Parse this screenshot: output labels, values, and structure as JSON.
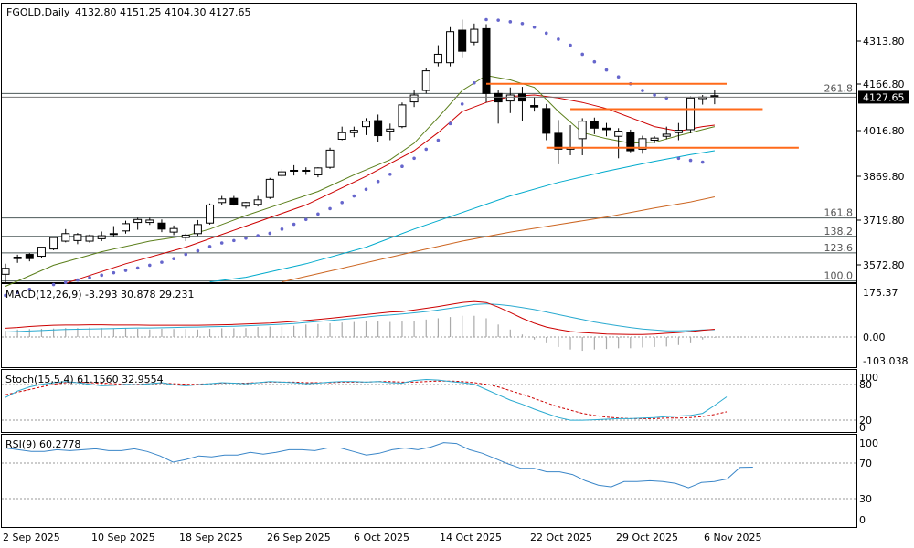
{
  "header": {
    "symbol_line": "FGOLD,Daily",
    "ohlc": "4132.80 4151.25 4104.30 4127.65"
  },
  "colors": {
    "candle_up": "#ffffff",
    "candle_down": "#000000",
    "ma_green": "#5b7f1b",
    "ma_red": "#cc0000",
    "ma_cyan": "#00aacc",
    "ma_brown": "#cc6622",
    "sar_dots": "#6666cc",
    "fib_line": "#4d5a5a",
    "sr_line": "#ff6a1a",
    "macd_signal": "#cc0000",
    "macd_main": "#2aaad0",
    "stoch_main": "#2aaad0",
    "stoch_signal": "#cc0000",
    "rsi": "#3a86c8",
    "price_tag_bg": "#000000",
    "price_tag_fg": "#ffffff"
  },
  "main_pane": {
    "price_axis": [
      "4313.80",
      "4166.80",
      "4016.80",
      "3869.80",
      "3719.80",
      "3572.80"
    ],
    "current_price_tag": "4127.65",
    "fib_levels": [
      {
        "label": "261.8",
        "price": 4140
      },
      {
        "label": "161.8",
        "price": 3727
      },
      {
        "label": "138.2",
        "price": 3666
      },
      {
        "label": "123.6",
        "price": 3611
      },
      {
        "label": "100.0",
        "price": 3518
      }
    ]
  },
  "macd_pane": {
    "label": "MACD(12,26,9) -3.293 30.878 29.231",
    "axis": [
      "175.37",
      "0.00",
      "-103.038"
    ]
  },
  "stoch_pane": {
    "label": "Stoch(15,5,4) 61.1560 32.9554",
    "axis": [
      "100",
      "80",
      "20",
      "0"
    ]
  },
  "rsi_pane": {
    "label": "RSI(9) 60.2778",
    "axis": [
      "100",
      "70",
      "30",
      "0"
    ]
  },
  "time_axis": [
    "2 Sep 2025",
    "10 Sep 2025",
    "18 Sep 2025",
    "26 Sep 2025",
    "6 Oct 2025",
    "14 Oct 2025",
    "22 Oct 2025",
    "29 Oct 2025",
    "6 Nov 2025"
  ],
  "chart_data": {
    "type": "candlestick",
    "symbol": "FGOLD",
    "timeframe": "Daily",
    "candles": [
      {
        "o": 3540,
        "h": 3575,
        "l": 3510,
        "c": 3560
      },
      {
        "o": 3592,
        "h": 3605,
        "l": 3578,
        "c": 3597
      },
      {
        "o": 3606,
        "h": 3610,
        "l": 3583,
        "c": 3592
      },
      {
        "o": 3600,
        "h": 3628,
        "l": 3595,
        "c": 3630
      },
      {
        "o": 3624,
        "h": 3665,
        "l": 3620,
        "c": 3662
      },
      {
        "o": 3650,
        "h": 3690,
        "l": 3646,
        "c": 3675
      },
      {
        "o": 3652,
        "h": 3677,
        "l": 3640,
        "c": 3672
      },
      {
        "o": 3650,
        "h": 3672,
        "l": 3645,
        "c": 3668
      },
      {
        "o": 3658,
        "h": 3682,
        "l": 3650,
        "c": 3668
      },
      {
        "o": 3672,
        "h": 3700,
        "l": 3666,
        "c": 3675
      },
      {
        "o": 3684,
        "h": 3718,
        "l": 3675,
        "c": 3708
      },
      {
        "o": 3712,
        "h": 3728,
        "l": 3688,
        "c": 3722
      },
      {
        "o": 3712,
        "h": 3728,
        "l": 3704,
        "c": 3720
      },
      {
        "o": 3710,
        "h": 3722,
        "l": 3680,
        "c": 3690
      },
      {
        "o": 3680,
        "h": 3702,
        "l": 3670,
        "c": 3692
      },
      {
        "o": 3662,
        "h": 3675,
        "l": 3650,
        "c": 3670
      },
      {
        "o": 3675,
        "h": 3720,
        "l": 3668,
        "c": 3705
      },
      {
        "o": 3710,
        "h": 3775,
        "l": 3705,
        "c": 3770
      },
      {
        "o": 3778,
        "h": 3800,
        "l": 3770,
        "c": 3790
      },
      {
        "o": 3792,
        "h": 3800,
        "l": 3768,
        "c": 3770
      },
      {
        "o": 3766,
        "h": 3780,
        "l": 3758,
        "c": 3778
      },
      {
        "o": 3772,
        "h": 3800,
        "l": 3765,
        "c": 3787
      },
      {
        "o": 3795,
        "h": 3860,
        "l": 3790,
        "c": 3855
      },
      {
        "o": 3868,
        "h": 3890,
        "l": 3862,
        "c": 3880
      },
      {
        "o": 3885,
        "h": 3902,
        "l": 3868,
        "c": 3882
      },
      {
        "o": 3882,
        "h": 3895,
        "l": 3870,
        "c": 3885
      },
      {
        "o": 3870,
        "h": 3895,
        "l": 3862,
        "c": 3893
      },
      {
        "o": 3895,
        "h": 3960,
        "l": 3890,
        "c": 3952
      },
      {
        "o": 3988,
        "h": 4030,
        "l": 3985,
        "c": 4010
      },
      {
        "o": 4010,
        "h": 4030,
        "l": 3995,
        "c": 4018
      },
      {
        "o": 4030,
        "h": 4058,
        "l": 4002,
        "c": 4048
      },
      {
        "o": 4050,
        "h": 4070,
        "l": 3978,
        "c": 4000
      },
      {
        "o": 4015,
        "h": 4040,
        "l": 3985,
        "c": 4022
      },
      {
        "o": 4030,
        "h": 4110,
        "l": 4025,
        "c": 4102
      },
      {
        "o": 4112,
        "h": 4150,
        "l": 4095,
        "c": 4135
      },
      {
        "o": 4150,
        "h": 4225,
        "l": 4140,
        "c": 4215
      },
      {
        "o": 4242,
        "h": 4300,
        "l": 4230,
        "c": 4270
      },
      {
        "o": 4242,
        "h": 4360,
        "l": 4230,
        "c": 4345
      },
      {
        "o": 4350,
        "h": 4385,
        "l": 4260,
        "c": 4280
      },
      {
        "o": 4310,
        "h": 4372,
        "l": 4300,
        "c": 4353
      },
      {
        "o": 4355,
        "h": 4370,
        "l": 4110,
        "c": 4140
      },
      {
        "o": 4140,
        "h": 4150,
        "l": 4040,
        "c": 4112
      },
      {
        "o": 4115,
        "h": 4160,
        "l": 4075,
        "c": 4135
      },
      {
        "o": 4138,
        "h": 4162,
        "l": 4050,
        "c": 4115
      },
      {
        "o": 4100,
        "h": 4128,
        "l": 4080,
        "c": 4095
      },
      {
        "o": 4090,
        "h": 4105,
        "l": 3985,
        "c": 4008
      },
      {
        "o": 4008,
        "h": 4052,
        "l": 3905,
        "c": 3955
      },
      {
        "o": 3955,
        "h": 4035,
        "l": 3935,
        "c": 3960
      },
      {
        "o": 3990,
        "h": 4058,
        "l": 3935,
        "c": 4048
      },
      {
        "o": 4048,
        "h": 4060,
        "l": 4005,
        "c": 4025
      },
      {
        "o": 4025,
        "h": 4042,
        "l": 3998,
        "c": 4020
      },
      {
        "o": 3998,
        "h": 4025,
        "l": 3925,
        "c": 4015
      },
      {
        "o": 4010,
        "h": 4020,
        "l": 3945,
        "c": 3950
      },
      {
        "o": 3955,
        "h": 4000,
        "l": 3940,
        "c": 3990
      },
      {
        "o": 3985,
        "h": 3998,
        "l": 3975,
        "c": 3992
      },
      {
        "o": 3998,
        "h": 4030,
        "l": 3988,
        "c": 4005
      },
      {
        "o": 4010,
        "h": 4042,
        "l": 3985,
        "c": 4018
      },
      {
        "o": 4020,
        "h": 4130,
        "l": 4008,
        "c": 4125
      },
      {
        "o": 4123,
        "h": 4135,
        "l": 4103,
        "c": 4128
      },
      {
        "o": 4132.8,
        "h": 4151.25,
        "l": 4104.3,
        "c": 4127.65
      }
    ],
    "sar": [
      {
        "i": 0,
        "v": 3470
      },
      {
        "i": 1,
        "v": 3480
      },
      {
        "i": 2,
        "v": 3490
      },
      {
        "i": 4,
        "v": 3506
      },
      {
        "i": 5,
        "v": 3513
      },
      {
        "i": 6,
        "v": 3521
      },
      {
        "i": 7,
        "v": 3529
      },
      {
        "i": 8,
        "v": 3537
      },
      {
        "i": 9,
        "v": 3545
      },
      {
        "i": 10,
        "v": 3553
      },
      {
        "i": 11,
        "v": 3561
      },
      {
        "i": 12,
        "v": 3570
      },
      {
        "i": 13,
        "v": 3580
      },
      {
        "i": 14,
        "v": 3592
      },
      {
        "i": 15,
        "v": 3606
      },
      {
        "i": 16,
        "v": 3618
      },
      {
        "i": 17,
        "v": 3632
      },
      {
        "i": 18,
        "v": 3644
      },
      {
        "i": 19,
        "v": 3652
      },
      {
        "i": 20,
        "v": 3660
      },
      {
        "i": 21,
        "v": 3668
      },
      {
        "i": 22,
        "v": 3676
      },
      {
        "i": 23,
        "v": 3690
      },
      {
        "i": 24,
        "v": 3706
      },
      {
        "i": 25,
        "v": 3722
      },
      {
        "i": 26,
        "v": 3740
      },
      {
        "i": 27,
        "v": 3758
      },
      {
        "i": 28,
        "v": 3778
      },
      {
        "i": 29,
        "v": 3800
      },
      {
        "i": 30,
        "v": 3822
      },
      {
        "i": 31,
        "v": 3848
      },
      {
        "i": 32,
        "v": 3872
      },
      {
        "i": 33,
        "v": 3898
      },
      {
        "i": 34,
        "v": 3925
      },
      {
        "i": 35,
        "v": 3955
      },
      {
        "i": 36,
        "v": 3985
      },
      {
        "i": 37,
        "v": 4040
      },
      {
        "i": 38,
        "v": 4105
      },
      {
        "i": 39,
        "v": 4175
      },
      {
        "i": 40,
        "v": 4385
      },
      {
        "i": 41,
        "v": 4383
      },
      {
        "i": 42,
        "v": 4378
      },
      {
        "i": 43,
        "v": 4372
      },
      {
        "i": 44,
        "v": 4360
      },
      {
        "i": 45,
        "v": 4340
      },
      {
        "i": 46,
        "v": 4320
      },
      {
        "i": 47,
        "v": 4300
      },
      {
        "i": 48,
        "v": 4270
      },
      {
        "i": 49,
        "v": 4245
      },
      {
        "i": 50,
        "v": 4218
      },
      {
        "i": 51,
        "v": 4195
      },
      {
        "i": 52,
        "v": 4172
      },
      {
        "i": 53,
        "v": 4150
      },
      {
        "i": 54,
        "v": 4135
      },
      {
        "i": 55,
        "v": 4125
      },
      {
        "i": 56,
        "v": 3925
      },
      {
        "i": 57,
        "v": 3918
      },
      {
        "i": 58,
        "v": 3912
      }
    ],
    "ma_green": [
      [
        0,
        3500
      ],
      [
        4,
        3570
      ],
      [
        8,
        3615
      ],
      [
        12,
        3650
      ],
      [
        15,
        3668
      ],
      [
        17,
        3690
      ],
      [
        20,
        3735
      ],
      [
        23,
        3775
      ],
      [
        26,
        3815
      ],
      [
        29,
        3870
      ],
      [
        32,
        3920
      ],
      [
        34,
        3975
      ],
      [
        36,
        4060
      ],
      [
        38,
        4150
      ],
      [
        40,
        4200
      ],
      [
        42,
        4185
      ],
      [
        44,
        4160
      ],
      [
        46,
        4080
      ],
      [
        48,
        4010
      ],
      [
        50,
        3990
      ],
      [
        52,
        3975
      ],
      [
        54,
        3978
      ],
      [
        56,
        4000
      ],
      [
        58,
        4020
      ],
      [
        59,
        4030
      ]
    ],
    "ma_red": [
      [
        5,
        3510
      ],
      [
        10,
        3575
      ],
      [
        15,
        3630
      ],
      [
        20,
        3700
      ],
      [
        25,
        3770
      ],
      [
        30,
        3865
      ],
      [
        34,
        3950
      ],
      [
        36,
        4010
      ],
      [
        38,
        4080
      ],
      [
        40,
        4110
      ],
      [
        42,
        4130
      ],
      [
        44,
        4135
      ],
      [
        46,
        4125
      ],
      [
        48,
        4110
      ],
      [
        50,
        4090
      ],
      [
        52,
        4060
      ],
      [
        54,
        4030
      ],
      [
        56,
        4015
      ],
      [
        58,
        4030
      ],
      [
        59,
        4035
      ]
    ],
    "ma_cyan": [
      [
        17,
        3515
      ],
      [
        20,
        3530
      ],
      [
        25,
        3575
      ],
      [
        30,
        3630
      ],
      [
        34,
        3690
      ],
      [
        38,
        3745
      ],
      [
        42,
        3800
      ],
      [
        46,
        3845
      ],
      [
        50,
        3882
      ],
      [
        54,
        3915
      ],
      [
        57,
        3937
      ],
      [
        59,
        3950
      ]
    ],
    "ma_brown": [
      [
        23,
        3515
      ],
      [
        28,
        3560
      ],
      [
        34,
        3615
      ],
      [
        38,
        3650
      ],
      [
        42,
        3680
      ],
      [
        46,
        3705
      ],
      [
        50,
        3730
      ],
      [
        54,
        3760
      ],
      [
        57,
        3780
      ],
      [
        59,
        3797
      ]
    ],
    "support_resistance": [
      {
        "price": 4172,
        "from": 40,
        "to": 60
      },
      {
        "price": 4088,
        "from": 47,
        "to": 63
      },
      {
        "price": 3960,
        "from": 45,
        "to": 66
      }
    ],
    "macd": {
      "histogram": [
        25,
        30,
        32,
        33,
        34,
        36,
        36,
        38,
        36,
        35,
        36,
        33,
        30,
        33,
        32,
        32,
        30,
        33,
        35,
        35,
        36,
        40,
        42,
        42,
        45,
        50,
        52,
        55,
        58,
        60,
        63,
        62,
        60,
        62,
        65,
        70,
        75,
        80,
        85,
        85,
        75,
        50,
        30,
        10,
        -10,
        -25,
        -40,
        -50,
        -55,
        -50,
        -48,
        -45,
        -45,
        -42,
        -40,
        -38,
        -32,
        -25,
        -10,
        -3.293
      ],
      "signal": [
        35,
        38,
        42,
        45,
        47,
        48,
        48,
        49,
        49,
        48,
        48,
        48,
        47,
        47,
        47,
        47,
        47,
        48,
        49,
        50,
        52,
        54,
        56,
        59,
        62,
        66,
        70,
        75,
        80,
        85,
        90,
        95,
        100,
        102,
        108,
        115,
        122,
        130,
        138,
        142,
        138,
        120,
        98,
        75,
        55,
        40,
        30,
        22,
        18,
        15,
        12,
        11,
        10,
        10,
        12,
        15,
        18,
        22,
        27,
        30.878
      ],
      "main": [
        20,
        22,
        24,
        26,
        28,
        30,
        31,
        32,
        33,
        34,
        35,
        36,
        36,
        37,
        38,
        39,
        40,
        41,
        42,
        43,
        45,
        47,
        49,
        51,
        54,
        58,
        62,
        66,
        70,
        75,
        80,
        85,
        88,
        92,
        97,
        102,
        108,
        115,
        122,
        130,
        133,
        130,
        125,
        118,
        110,
        100,
        90,
        80,
        70,
        60,
        52,
        45,
        38,
        32,
        28,
        25,
        25,
        26,
        28,
        29.231
      ]
    },
    "stoch": {
      "main": [
        60,
        72,
        80,
        85,
        88,
        90,
        88,
        85,
        82,
        83,
        85,
        84,
        86,
        88,
        84,
        82,
        84,
        86,
        88,
        87,
        86,
        88,
        90,
        89,
        88,
        86,
        87,
        89,
        90,
        90,
        89,
        90,
        88,
        87,
        92,
        94,
        93,
        90,
        88,
        85,
        75,
        65,
        55,
        47,
        38,
        30,
        22,
        17,
        17,
        18,
        19,
        20,
        20,
        21,
        22,
        24,
        25,
        26,
        30,
        45,
        61.156
      ],
      "signal": [
        65,
        70,
        75,
        80,
        85,
        88,
        89,
        88,
        87,
        86,
        85,
        85,
        86,
        87,
        86,
        85,
        85,
        86,
        87,
        87,
        87,
        88,
        89,
        89,
        89,
        88,
        88,
        88,
        89,
        89,
        89,
        90,
        90,
        89,
        89,
        90,
        91,
        91,
        90,
        88,
        85,
        80,
        73,
        66,
        58,
        50,
        42,
        36,
        30,
        26,
        23,
        21,
        20,
        20,
        20,
        21,
        21,
        22,
        24,
        28,
        32.9554
      ]
    },
    "rsi": [
      82,
      80,
      78,
      78,
      80,
      79,
      80,
      81,
      79,
      79,
      81,
      78,
      73,
      66,
      69,
      73,
      72,
      74,
      74,
      77,
      75,
      77,
      80,
      80,
      79,
      82,
      82,
      78,
      74,
      76,
      80,
      82,
      80,
      83,
      88,
      87,
      80,
      76,
      70,
      64,
      59,
      59,
      55,
      55,
      52,
      45,
      40,
      38,
      44,
      44,
      45,
      44,
      42,
      37,
      43,
      44,
      47,
      60,
      60.2778
    ]
  }
}
